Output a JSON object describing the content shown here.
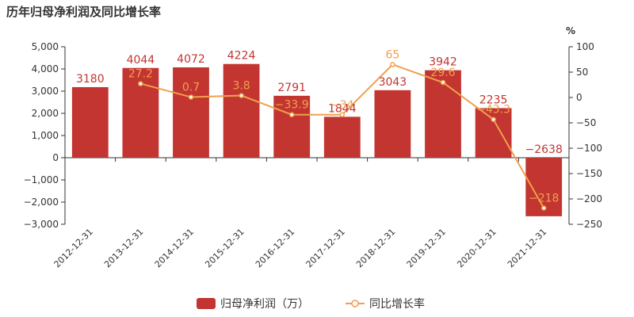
{
  "chart_data": {
    "type": "bar",
    "title": "历年归母净利润及同比增长率",
    "categories": [
      "2012-12-31",
      "2013-12-31",
      "2014-12-31",
      "2015-12-31",
      "2016-12-31",
      "2017-12-31",
      "2018-12-31",
      "2019-12-31",
      "2020-12-31",
      "2021-12-31"
    ],
    "series": [
      {
        "name": "归母净利润（万）",
        "type": "bar",
        "axis": "left",
        "values": [
          3180,
          4044,
          4072,
          4224,
          2791,
          1844,
          3043,
          3942,
          2235,
          -2638
        ],
        "labels": [
          "3180",
          "4044",
          "4072",
          "4224",
          "2791",
          "1844",
          "3043",
          "3942",
          "2235",
          "−2638"
        ]
      },
      {
        "name": "同比增长率",
        "type": "line",
        "axis": "right",
        "values": [
          null,
          27.2,
          0.7,
          3.8,
          -33.9,
          -34,
          65,
          29.6,
          -43.3,
          -218
        ],
        "labels": [
          "",
          "27.2",
          "0.7",
          "3.8",
          "−33.9",
          "−34",
          "65",
          "29.6",
          "−43.3",
          "−218"
        ]
      }
    ],
    "y_left": {
      "min": -3000,
      "max": 5000,
      "ticks": [
        5000,
        4000,
        3000,
        2000,
        1000,
        0,
        -1000,
        -2000,
        -3000
      ],
      "tick_labels": [
        "5,000",
        "4,000",
        "3,000",
        "2,000",
        "1,000",
        "0",
        "−1,000",
        "−2,000",
        "−3,000"
      ]
    },
    "y_right": {
      "unit": "%",
      "min": -250,
      "max": 100,
      "ticks": [
        100,
        50,
        0,
        -50,
        -100,
        -150,
        -200,
        -250
      ],
      "tick_labels": [
        "100",
        "50",
        "0",
        "−50",
        "−100",
        "−150",
        "−200",
        "−250"
      ]
    },
    "legend": {
      "placement": "bottom"
    },
    "colors": {
      "bar": "#c23531",
      "line": "#f0a04b"
    }
  }
}
